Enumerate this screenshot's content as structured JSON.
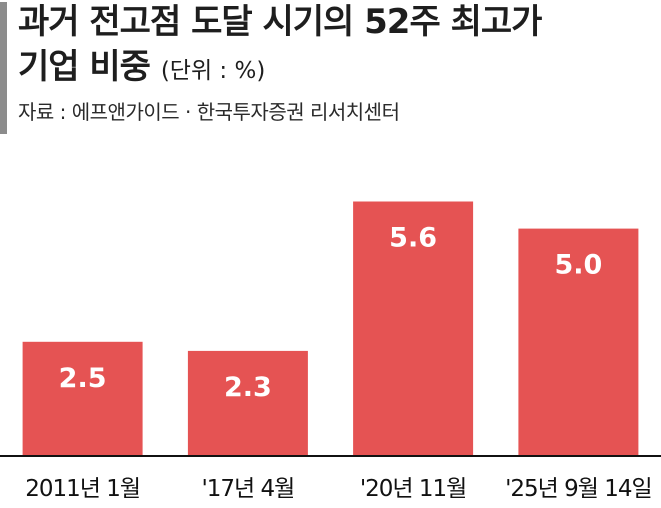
{
  "header": {
    "title_line1": "과거 전고점 도달 시기의 52주 최고가",
    "title_line2": "기업 비중",
    "unit": "(단위 : %)",
    "source": "자료 : 에프앤가이드 · 한국투자증권 리서치센터"
  },
  "colors": {
    "bar": "#e55353",
    "axis": "#111111",
    "accent": "#8c8c8c"
  },
  "chart_data": {
    "type": "bar",
    "categories": [
      "2011년 1월",
      "'17년 4월",
      "'20년 11월",
      "'25년 9월 14일"
    ],
    "values": [
      2.5,
      2.3,
      5.6,
      5.0
    ],
    "data_labels": [
      "2.5",
      "2.3",
      "5.6",
      "5.0"
    ],
    "title": "과거 전고점 도달 시기의 52주 최고가 기업 비중",
    "unit": "%",
    "ylim": [
      0,
      6.45
    ],
    "grid": false,
    "legend": "none"
  }
}
